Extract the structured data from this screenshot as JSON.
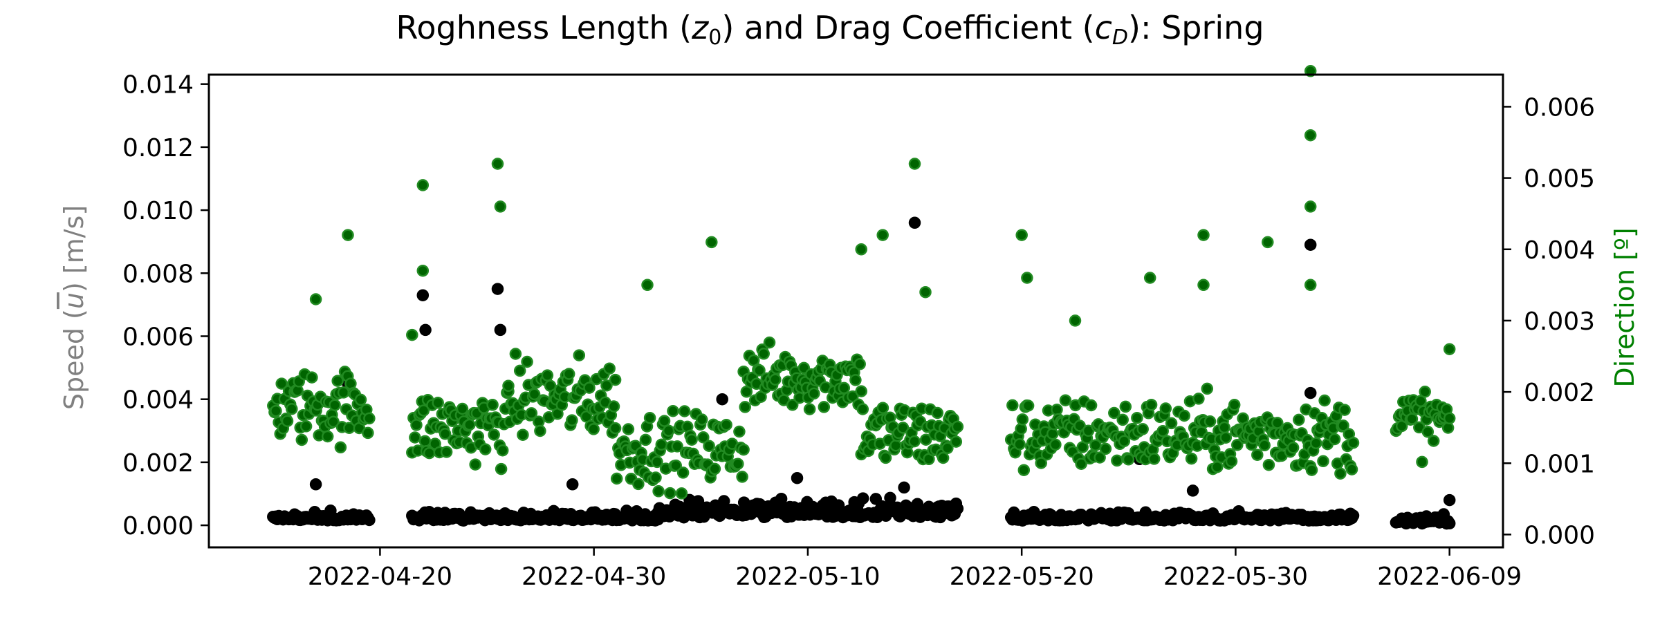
{
  "chart_data": {
    "type": "scatter",
    "title": "Roghness Length (z₀) and Drag Coefficient (c_D): Spring",
    "title_parts": {
      "pre": "Roghness Length (",
      "z_sym": "z",
      "z_sub": "0",
      "mid": ") and Drag Coefficient (",
      "c_sym": "c",
      "c_sub": "D",
      "post": "): Spring"
    },
    "ylabel_left": "Speed (u̅) [m/s]",
    "ylabel_left_parts": {
      "pre": "Speed (",
      "u_sym": "u",
      "post": ") [m/s]"
    },
    "ylabel_right": "Direction [º]",
    "x_ticks": [
      "2022-04-20",
      "2022-04-30",
      "2022-05-10",
      "2022-05-20",
      "2022-05-30",
      "2022-06-09"
    ],
    "y_left_ticks": [
      "0.000",
      "0.002",
      "0.004",
      "0.006",
      "0.008",
      "0.010",
      "0.012",
      "0.014"
    ],
    "y_right_ticks": [
      "0.000",
      "0.001",
      "0.002",
      "0.003",
      "0.004",
      "0.005",
      "0.006"
    ],
    "xlim": [
      "2022-04-12",
      "2022-06-11 12:00"
    ],
    "ylim_left": [
      -0.0007,
      0.0143
    ],
    "ylim_right": [
      -0.00018,
      0.00645
    ],
    "grid": false,
    "colors": {
      "series_left": "#000000",
      "series_right": "#006400",
      "series_right_edge": "#228B22",
      "ylabel_left": "#808080",
      "ylabel_right": "#008000"
    },
    "series": [
      {
        "axis": "left",
        "color": "#000000",
        "segments": [
          {
            "x": [
              "2022-04-15",
              "2022-04-19 12:00"
            ],
            "base": 0.0002,
            "spread": 0.0002
          },
          {
            "x": [
              "2022-04-21 12:00",
              "2022-05-03"
            ],
            "base": 0.0002,
            "spread": 0.0002
          },
          {
            "x": [
              "2022-05-03",
              "2022-05-17"
            ],
            "base": 0.0003,
            "spread": 0.0004
          },
          {
            "x": [
              "2022-05-19 12:00",
              "2022-06-04 12:00"
            ],
            "base": 0.0002,
            "spread": 0.0002
          },
          {
            "x": [
              "2022-06-06 12:00",
              "2022-06-09"
            ],
            "base": 0.0001,
            "spread": 0.0002
          }
        ],
        "outliers": [
          {
            "x": "2022-04-18 12:00",
            "y": 0.0045
          },
          {
            "x": "2022-04-17",
            "y": 0.0013
          },
          {
            "x": "2022-04-22",
            "y": 0.0073
          },
          {
            "x": "2022-04-22 03:00",
            "y": 0.0062
          },
          {
            "x": "2022-04-25 12:00",
            "y": 0.0075
          },
          {
            "x": "2022-04-25 15:00",
            "y": 0.0062
          },
          {
            "x": "2022-04-29",
            "y": 0.0013
          },
          {
            "x": "2022-05-06",
            "y": 0.004
          },
          {
            "x": "2022-05-09 12:00",
            "y": 0.0015
          },
          {
            "x": "2022-05-15",
            "y": 0.0096
          },
          {
            "x": "2022-05-14 12:00",
            "y": 0.0012
          },
          {
            "x": "2022-05-25 12:00",
            "y": 0.0021
          },
          {
            "x": "2022-05-28",
            "y": 0.0011
          },
          {
            "x": "2022-06-02 12:00",
            "y": 0.0089
          },
          {
            "x": "2022-06-02 12:00",
            "y": 0.0042
          },
          {
            "x": "2022-06-09",
            "y": 0.0008
          }
        ]
      },
      {
        "axis": "right",
        "color": "#006400",
        "segments": [
          {
            "x": [
              "2022-04-15",
              "2022-04-19 12:00"
            ],
            "base": 0.0018,
            "spread": 0.00045
          },
          {
            "x": [
              "2022-04-21 12:00",
              "2022-04-26"
            ],
            "base": 0.0015,
            "spread": 0.00045
          },
          {
            "x": [
              "2022-04-26",
              "2022-05-01"
            ],
            "base": 0.0019,
            "spread": 0.0005
          },
          {
            "x": [
              "2022-05-01",
              "2022-05-07"
            ],
            "base": 0.0012,
            "spread": 0.00045
          },
          {
            "x": [
              "2022-05-07",
              "2022-05-12 12:00"
            ],
            "base": 0.0022,
            "spread": 0.0004
          },
          {
            "x": [
              "2022-05-12 12:00",
              "2022-05-17"
            ],
            "base": 0.0014,
            "spread": 0.00045
          },
          {
            "x": [
              "2022-05-19 12:00",
              "2022-06-04 12:00"
            ],
            "base": 0.0014,
            "spread": 0.00045
          },
          {
            "x": [
              "2022-06-06 12:00",
              "2022-06-09"
            ],
            "base": 0.0016,
            "spread": 0.0004
          }
        ],
        "outliers": [
          {
            "x": "2022-04-17",
            "y": 0.0033
          },
          {
            "x": "2022-04-18 12:00",
            "y": 0.0042
          },
          {
            "x": "2022-04-22",
            "y": 0.0049
          },
          {
            "x": "2022-04-22",
            "y": 0.0037
          },
          {
            "x": "2022-04-21 12:00",
            "y": 0.0028
          },
          {
            "x": "2022-04-25 12:00",
            "y": 0.0052
          },
          {
            "x": "2022-04-25 15:00",
            "y": 0.0046
          },
          {
            "x": "2022-05-02 12:00",
            "y": 0.0035
          },
          {
            "x": "2022-05-05 12:00",
            "y": 0.0041
          },
          {
            "x": "2022-05-12 12:00",
            "y": 0.004
          },
          {
            "x": "2022-05-13 12:00",
            "y": 0.0042
          },
          {
            "x": "2022-05-15",
            "y": 0.0052
          },
          {
            "x": "2022-05-15 12:00",
            "y": 0.0034
          },
          {
            "x": "2022-05-20",
            "y": 0.0042
          },
          {
            "x": "2022-05-20 06:00",
            "y": 0.0036
          },
          {
            "x": "2022-05-22 12:00",
            "y": 0.003
          },
          {
            "x": "2022-05-26",
            "y": 0.0036
          },
          {
            "x": "2022-05-28 12:00",
            "y": 0.0042
          },
          {
            "x": "2022-05-28 12:00",
            "y": 0.0035
          },
          {
            "x": "2022-05-31 12:00",
            "y": 0.0041
          },
          {
            "x": "2022-06-02 12:00",
            "y": 0.0065
          },
          {
            "x": "2022-06-02 12:00",
            "y": 0.0056
          },
          {
            "x": "2022-06-02 12:00",
            "y": 0.0046
          },
          {
            "x": "2022-06-02 12:00",
            "y": 0.0035
          },
          {
            "x": "2022-06-09",
            "y": 0.0026
          }
        ]
      }
    ]
  }
}
